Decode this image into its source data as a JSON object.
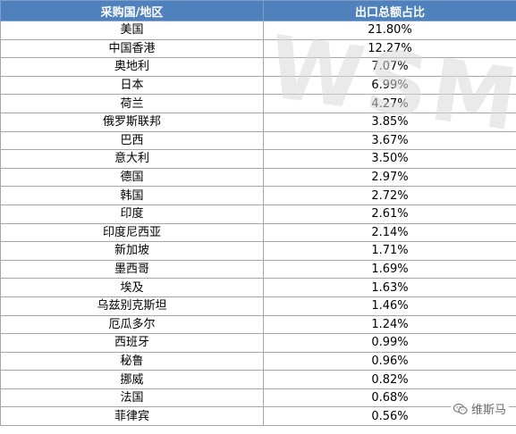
{
  "table": {
    "headers": [
      "采购国/地区",
      "出口总额占比"
    ],
    "rows": [
      [
        "美国",
        "21.80%"
      ],
      [
        "中国香港",
        "12.27%"
      ],
      [
        "奥地利",
        "7.07%"
      ],
      [
        "日本",
        "6.99%"
      ],
      [
        "荷兰",
        "4.27%"
      ],
      [
        "俄罗斯联邦",
        "3.85%"
      ],
      [
        "巴西",
        "3.67%"
      ],
      [
        "意大利",
        "3.50%"
      ],
      [
        "德国",
        "2.97%"
      ],
      [
        "韩国",
        "2.72%"
      ],
      [
        "印度",
        "2.61%"
      ],
      [
        "印度尼西亚",
        "2.14%"
      ],
      [
        "新加坡",
        "1.71%"
      ],
      [
        "墨西哥",
        "1.69%"
      ],
      [
        "埃及",
        "1.63%"
      ],
      [
        "乌兹别克斯坦",
        "1.46%"
      ],
      [
        "厄瓜多尔",
        "1.24%"
      ],
      [
        "西班牙",
        "0.99%"
      ],
      [
        "秘鲁",
        "0.96%"
      ],
      [
        "挪威",
        "0.82%"
      ],
      [
        "法国",
        "0.68%"
      ],
      [
        "菲律宾",
        "0.56%"
      ]
    ]
  },
  "watermark": {
    "text": "WSM"
  },
  "badge": {
    "text": "维斯马",
    "icon": "wechat-icon"
  },
  "colors": {
    "header_bg": "#4f81bd",
    "header_text": "#ffffff",
    "border": "#a6a6a6"
  }
}
